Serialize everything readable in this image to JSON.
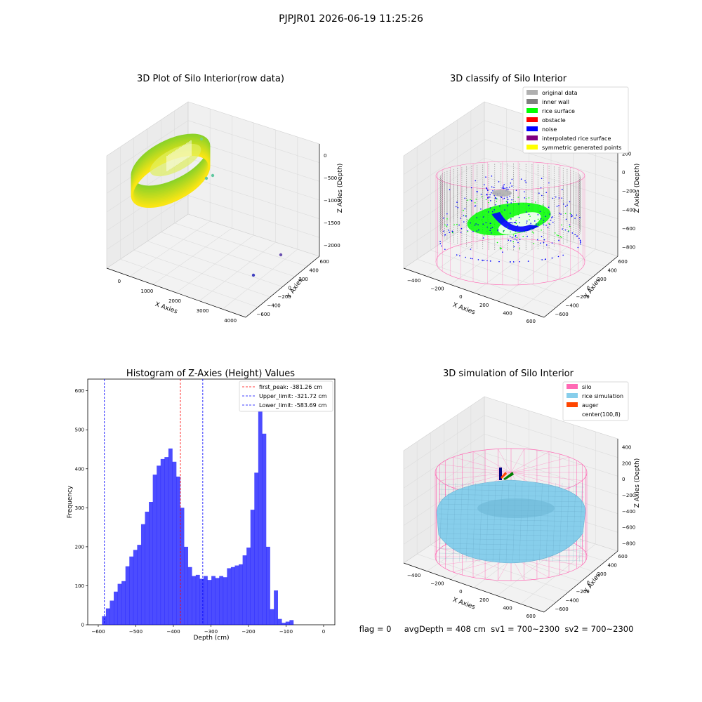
{
  "figure": {
    "suptitle": "PJPJR01 2026-06-19 11:25:26",
    "footer": "flag = 0     avgDepth = 408 cm  sv1 = 700~2300  sv2 = 700~2300"
  },
  "colors": {
    "hist_bar": "#0000ff",
    "first_peak": "#ff0000",
    "limits": "#0000ff",
    "silo": "#ff69b4",
    "rice": "#87ceeb",
    "auger": "#ff4500",
    "rice_surface": "#00ff00",
    "noise": "#0000ff",
    "inner_wall": "#808080",
    "original": "#b0b0b0",
    "interpolated": "#800080",
    "symmetric": "#ffff00",
    "obstacle": "#ff0000"
  },
  "chart_data": [
    {
      "type": "scatter",
      "subtype": "3d",
      "title": "3D Plot of Silo Interior(row data)",
      "xlabel": "X Axies",
      "ylabel": "Y Axies",
      "zlabel": "Z Axies (Depth)",
      "xticks": [
        "0",
        "1000",
        "2000",
        "3000",
        "4000"
      ],
      "yticks": [
        "600",
        "400",
        "200",
        "0",
        "−200",
        "−400",
        "−600"
      ],
      "zticks": [
        "0",
        "−500",
        "−1000",
        "−1500",
        "−2000"
      ],
      "xlim": [
        -400,
        4000
      ],
      "ylim": [
        -600,
        600
      ],
      "zlim": [
        -2200,
        0
      ],
      "outliers": [
        {
          "x": 3400,
          "y": -100,
          "z": -2000
        },
        {
          "x": 3500,
          "y": 300,
          "z": -1900
        },
        {
          "x": 600,
          "y": 200,
          "z": -700
        },
        {
          "x": 700,
          "y": 400,
          "z": -650
        },
        {
          "x": 500,
          "y": 450,
          "z": -200
        }
      ]
    },
    {
      "type": "scatter",
      "subtype": "3d",
      "title": "3D classify of Silo Interior",
      "xlabel": "X Axies",
      "ylabel": "Y Axies",
      "zlabel": "Z Axies (Depth)",
      "xticks": [
        "−400",
        "−200",
        "0",
        "200",
        "400",
        "600"
      ],
      "yticks": [
        "600",
        "400",
        "200",
        "0",
        "−200",
        "−400",
        "−600"
      ],
      "zticks": [
        "200",
        "0",
        "−200",
        "−400",
        "−600",
        "−800"
      ],
      "legend": [
        "original data",
        "inner wall",
        "rice surface",
        "obstacle",
        "noise",
        "interpolated rice surface",
        "symmetric generated points"
      ],
      "legend_position": "top-right"
    },
    {
      "type": "bar",
      "subtype": "histogram",
      "title": "Histogram of Z-Axies (Height) Values",
      "xlabel": "Depth (cm)",
      "ylabel": "Frequency",
      "xlim": [
        -628,
        30
      ],
      "ylim": [
        0,
        630
      ],
      "xticks": [
        "−600",
        "−500",
        "−400",
        "−300",
        "−200",
        "−100",
        "0"
      ],
      "yticks": [
        "0",
        "100",
        "200",
        "300",
        "400",
        "500",
        "600"
      ],
      "bin_start": -590,
      "bin_width": 10.4,
      "values": [
        22,
        42,
        62,
        85,
        105,
        112,
        150,
        175,
        192,
        205,
        258,
        290,
        315,
        385,
        408,
        425,
        430,
        452,
        418,
        380,
        300,
        200,
        148,
        125,
        128,
        118,
        125,
        115,
        125,
        120,
        125,
        122,
        145,
        148,
        152,
        155,
        178,
        198,
        295,
        390,
        600,
        490,
        200,
        40,
        88,
        15,
        5,
        8,
        12
      ],
      "lines": [
        {
          "label": "first_peak: -381.26 cm",
          "x": -381.26,
          "color": "#ff0000"
        },
        {
          "label": "Upper_limit: -321.72 cm",
          "x": -321.72,
          "color": "#0000ff"
        },
        {
          "label": "Lower_limit: -583.69 cm",
          "x": -583.69,
          "color": "#0000ff"
        }
      ],
      "legend_position": "top-right"
    },
    {
      "type": "surface",
      "subtype": "3d",
      "title": "3D simulation of Silo Interior",
      "xlabel": "X Axies",
      "ylabel": "Y Axies",
      "zlabel": "Z Axies (Depth)",
      "xticks": [
        "−400",
        "−200",
        "0",
        "200",
        "400",
        "600"
      ],
      "yticks": [
        "600",
        "400",
        "200",
        "0",
        "−200",
        "−400",
        "−600"
      ],
      "zticks": [
        "400",
        "200",
        "0",
        "−200",
        "−400",
        "−600",
        "−800"
      ],
      "legend": [
        "silo",
        "rice simulation",
        "auger",
        "center(100,8)"
      ],
      "legend_position": "top-right"
    }
  ]
}
